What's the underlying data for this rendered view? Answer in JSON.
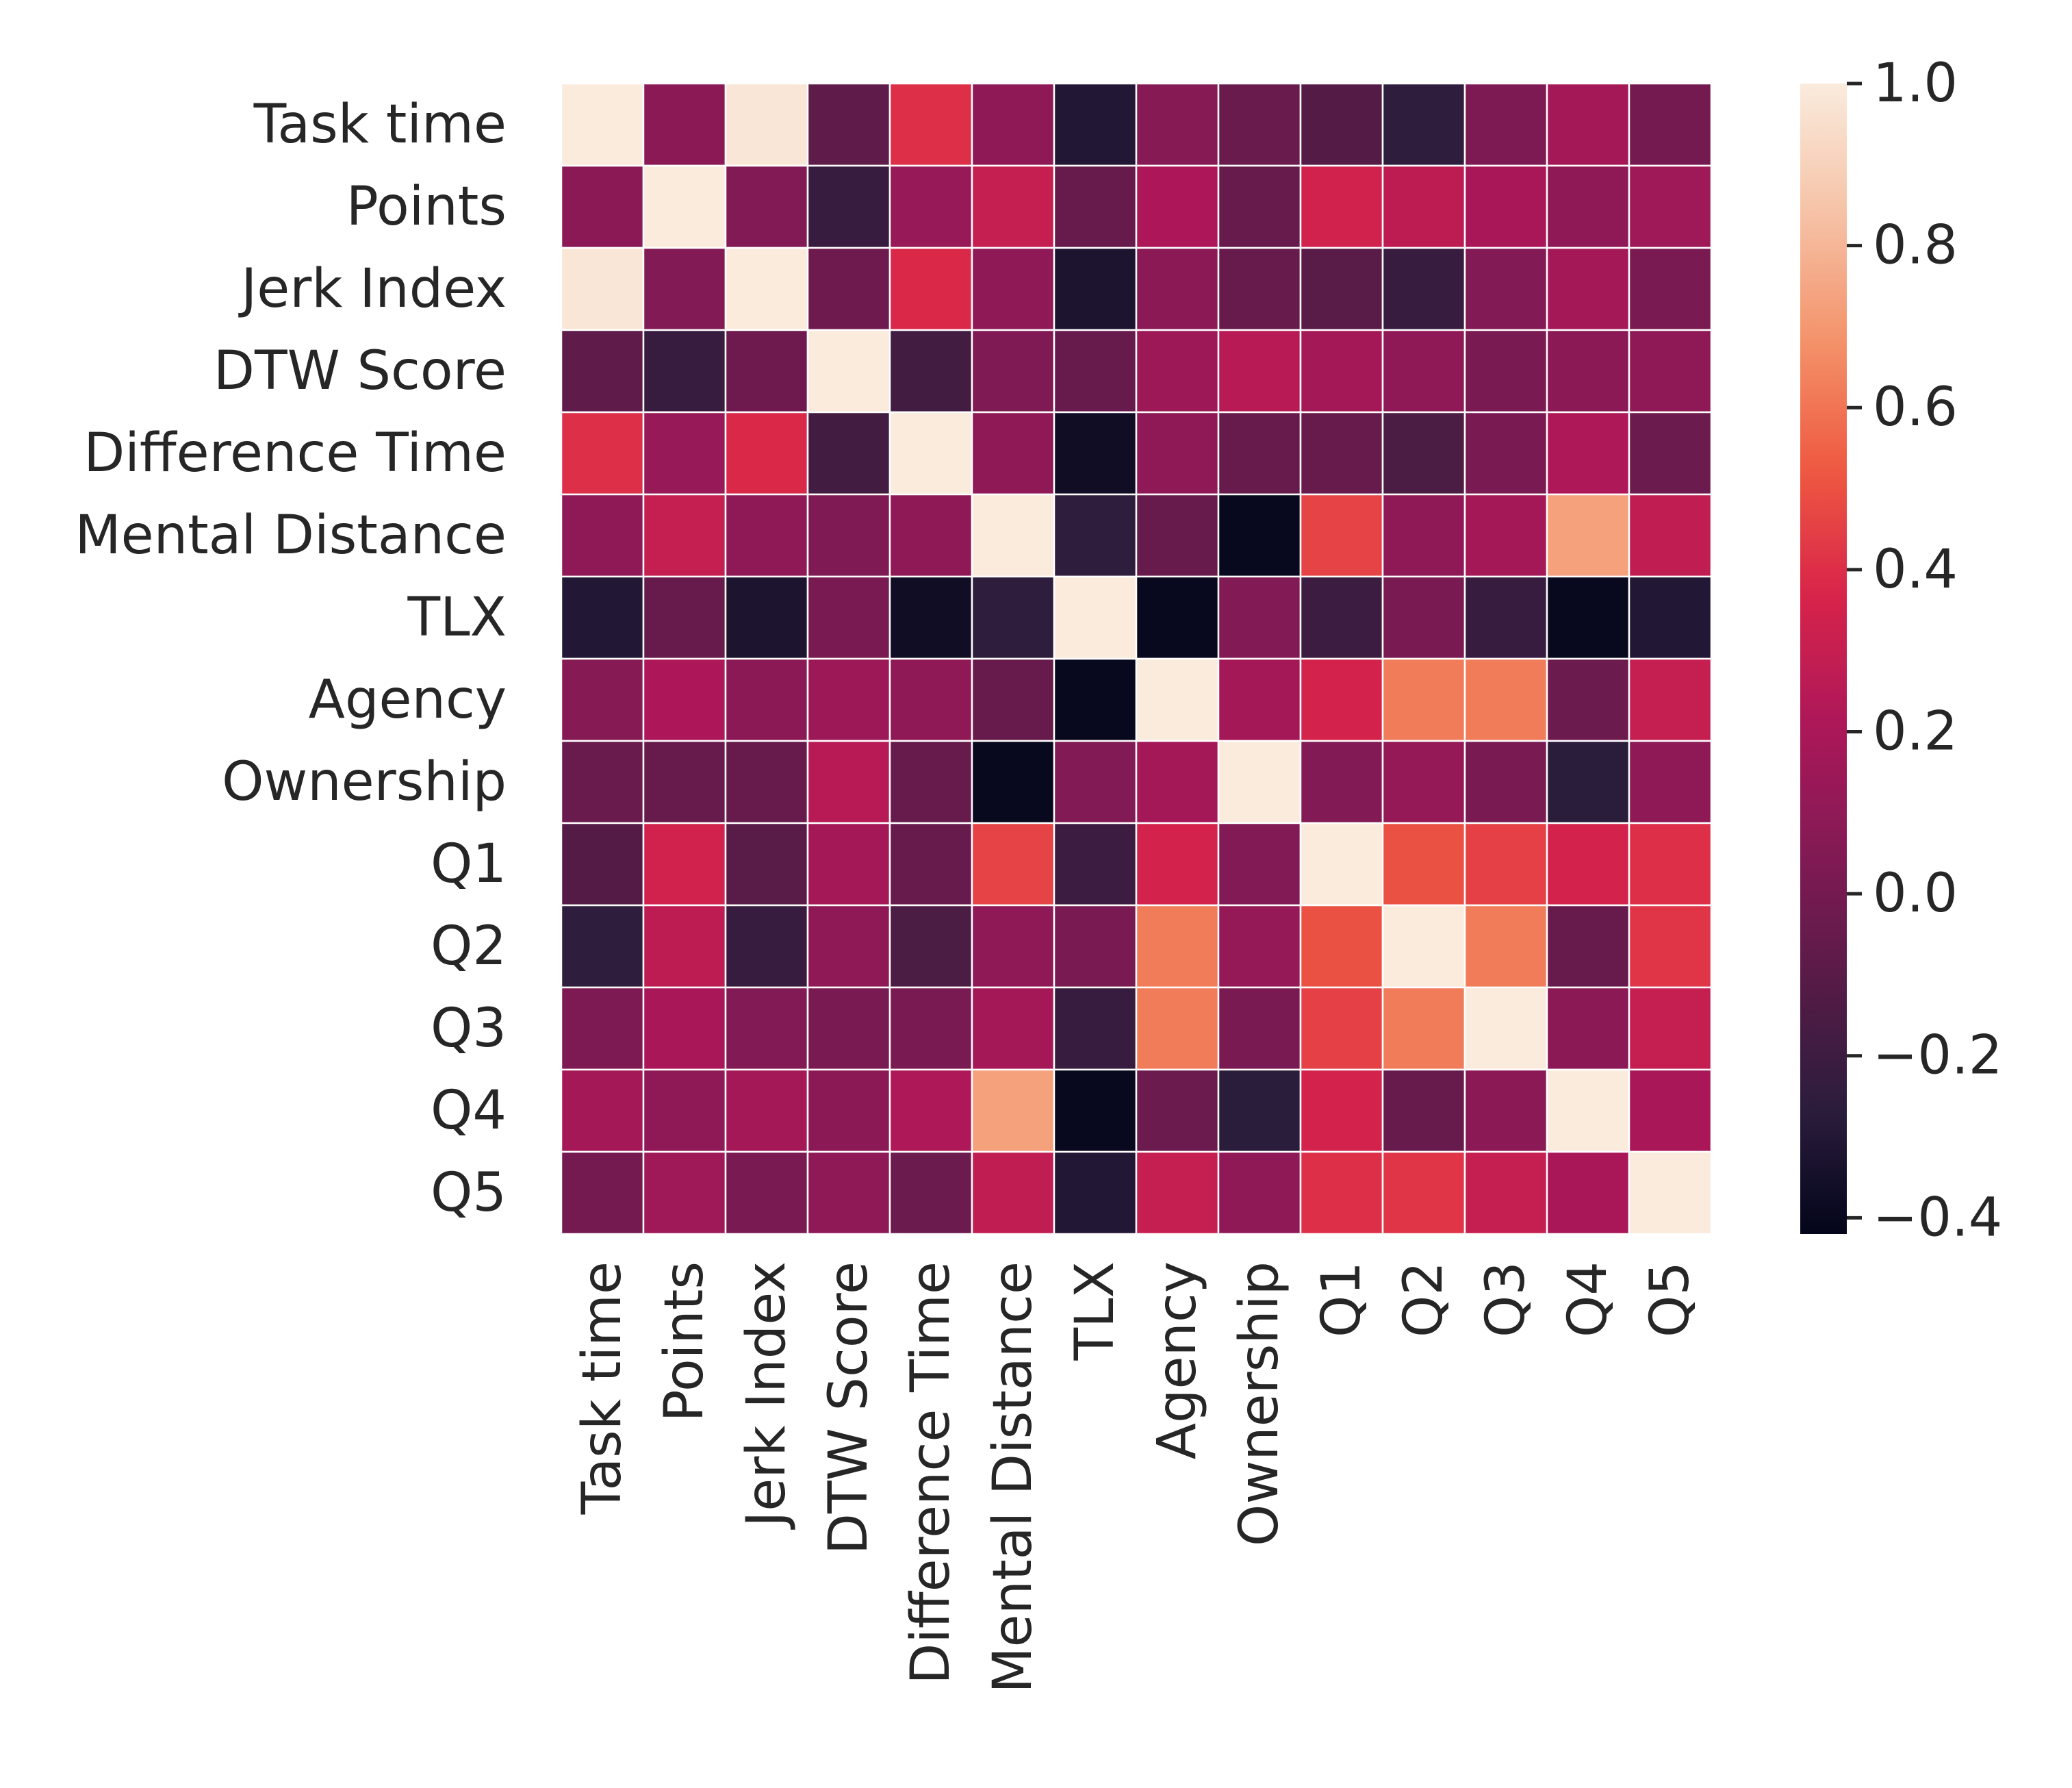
{
  "chart_data": {
    "type": "heatmap",
    "title": "",
    "xlabel": "",
    "ylabel": "",
    "labels": [
      "Task time",
      "Points",
      "Jerk Index",
      "DTW Score",
      "Difference Time",
      "Mental Distance",
      "TLX",
      "Agency",
      "Ownership",
      "Q1",
      "Q2",
      "Q3",
      "Q4",
      "Q5"
    ],
    "values": [
      [
        1.0,
        0.08,
        0.98,
        -0.08,
        0.4,
        0.1,
        -0.3,
        0.06,
        -0.04,
        -0.12,
        -0.25,
        0.03,
        0.18,
        0.0
      ],
      [
        0.08,
        1.0,
        0.05,
        -0.22,
        0.13,
        0.3,
        -0.05,
        0.21,
        -0.05,
        0.34,
        0.27,
        0.2,
        0.1,
        0.16
      ],
      [
        0.98,
        0.05,
        1.0,
        -0.02,
        0.38,
        0.1,
        -0.32,
        0.08,
        -0.05,
        -0.1,
        -0.22,
        0.05,
        0.18,
        0.02
      ],
      [
        -0.08,
        -0.22,
        -0.02,
        1.0,
        -0.18,
        0.04,
        -0.05,
        0.15,
        0.25,
        0.18,
        0.1,
        0.02,
        0.08,
        0.1
      ],
      [
        0.4,
        0.13,
        0.38,
        -0.18,
        1.0,
        0.1,
        -0.37,
        0.1,
        -0.05,
        -0.05,
        -0.15,
        0.02,
        0.22,
        -0.03
      ],
      [
        0.1,
        0.3,
        0.1,
        0.04,
        0.1,
        1.0,
        -0.25,
        -0.05,
        -0.4,
        0.46,
        0.1,
        0.18,
        0.73,
        0.28
      ],
      [
        -0.3,
        -0.05,
        -0.32,
        0.02,
        -0.37,
        -0.25,
        1.0,
        -0.4,
        0.05,
        -0.2,
        0.02,
        -0.22,
        -0.4,
        -0.3
      ],
      [
        0.06,
        0.21,
        0.08,
        0.15,
        0.1,
        -0.05,
        -0.4,
        1.0,
        0.18,
        0.35,
        0.62,
        0.62,
        -0.03,
        0.3
      ],
      [
        -0.04,
        -0.05,
        -0.05,
        0.25,
        -0.05,
        -0.4,
        0.05,
        0.18,
        1.0,
        0.05,
        0.12,
        0.02,
        -0.27,
        0.1
      ],
      [
        -0.12,
        0.34,
        -0.1,
        0.18,
        -0.05,
        0.46,
        -0.2,
        0.35,
        0.05,
        1.0,
        0.5,
        0.45,
        0.35,
        0.4
      ],
      [
        -0.25,
        0.27,
        -0.22,
        0.1,
        -0.15,
        0.1,
        0.02,
        0.62,
        0.12,
        0.5,
        1.0,
        0.62,
        -0.05,
        0.42
      ],
      [
        0.03,
        0.2,
        0.05,
        0.02,
        0.02,
        0.18,
        -0.22,
        0.62,
        0.02,
        0.45,
        0.62,
        1.0,
        0.08,
        0.3
      ],
      [
        0.18,
        0.1,
        0.18,
        0.08,
        0.22,
        0.73,
        -0.4,
        -0.03,
        -0.27,
        0.35,
        -0.05,
        0.08,
        1.0,
        0.2
      ],
      [
        0.0,
        0.16,
        0.02,
        0.1,
        -0.03,
        0.28,
        -0.3,
        0.3,
        0.1,
        0.4,
        0.42,
        0.3,
        0.2,
        1.0
      ]
    ],
    "vmin": -0.42,
    "vmax": 1.0,
    "colormap": "rocket",
    "colorbar": {
      "ticks": [
        -0.4,
        -0.2,
        0.0,
        0.2,
        0.4,
        0.6,
        0.8,
        1.0
      ],
      "tick_labels": [
        "−0.4",
        "−0.2",
        "0.0",
        "0.2",
        "0.4",
        "0.6",
        "0.8",
        "1.0"
      ]
    },
    "cell_border_color": "#ffffff",
    "text_color": "#262626",
    "colormap_stops": [
      "#03051a",
      "#2c1d3d",
      "#581b47",
      "#831a55",
      "#ad1759",
      "#d8244a",
      "#ef5a41",
      "#f3936b",
      "#f6c3a7",
      "#faebdd"
    ]
  }
}
